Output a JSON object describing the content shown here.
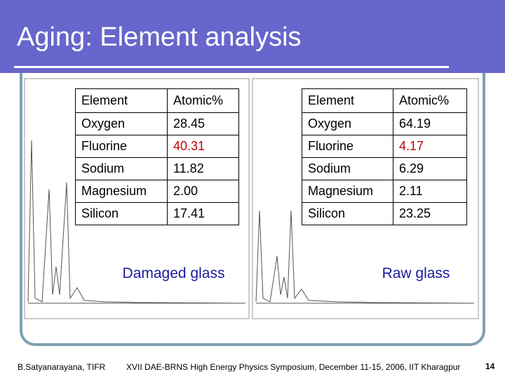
{
  "header": {
    "title": "Aging: Element analysis"
  },
  "tables": [
    {
      "caption": "Damaged glass",
      "rows": [
        [
          "Element",
          "Atomic%"
        ],
        [
          "Oxygen",
          "28.45"
        ],
        [
          "Fluorine",
          "40.31"
        ],
        [
          "Sodium",
          "11.82"
        ],
        [
          "Magnesium",
          "2.00"
        ],
        [
          "Silicon",
          "17.41"
        ]
      ]
    },
    {
      "caption": "Raw glass",
      "rows": [
        [
          "Element",
          "Atomic%"
        ],
        [
          "Oxygen",
          "64.19"
        ],
        [
          "Fluorine",
          "4.17"
        ],
        [
          "Sodium",
          "6.29"
        ],
        [
          "Magnesium",
          "2.11"
        ],
        [
          "Silicon",
          "23.25"
        ]
      ]
    }
  ],
  "footer": {
    "author": "B.Satyanarayana, TIFR",
    "event": "XVII DAE-BRNS High Energy Physics Symposium, December 11-15, 2006, IIT Kharagpur",
    "page": "14"
  }
}
